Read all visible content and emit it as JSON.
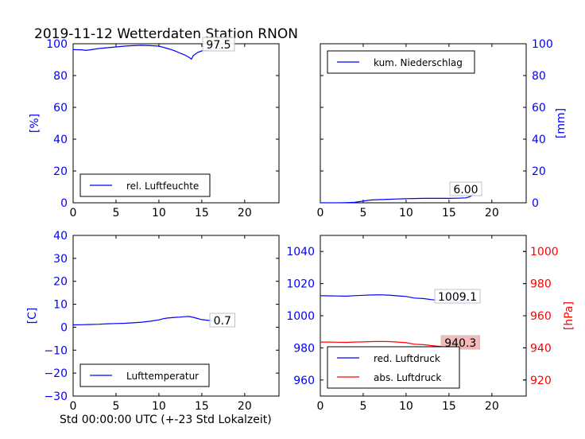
{
  "title": "2019-11-12 Wetterdaten Station RNON",
  "xlabel": "Std 00:00:00 UTC (+-23 Std Lokalzeit)",
  "colors": {
    "primary": "#0000ff",
    "secondary": "#ff0000",
    "axis": "#000000",
    "label_fill_red": "#f4b4b4"
  },
  "chart_data": [
    {
      "type": "line",
      "panel": "top-left",
      "ylabel": "[%]",
      "xlim": [
        0,
        24
      ],
      "ylim": [
        0,
        100
      ],
      "xticks": [
        "0",
        "5",
        "10",
        "15",
        "20"
      ],
      "yticks": [
        "0",
        "20",
        "40",
        "60",
        "80",
        "100"
      ],
      "legend": {
        "placement": "lower-left",
        "entries": [
          "rel. Luftfeuchte"
        ]
      },
      "last_value_label": "97.5",
      "series": [
        {
          "name": "rel. Luftfeuchte",
          "color": "#0000ff",
          "x": [
            0,
            1,
            1.5,
            2,
            3,
            4,
            5,
            6,
            7,
            8,
            9,
            10,
            10.5,
            11,
            11.5,
            12,
            12.5,
            13,
            13.5,
            13.8,
            14,
            14.5,
            15,
            16,
            17,
            18
          ],
          "y": [
            96.3,
            96.2,
            95.8,
            96.2,
            97,
            97.5,
            98,
            98.5,
            98.8,
            99,
            98.8,
            98.5,
            97.8,
            97,
            96.2,
            95.2,
            94,
            93,
            91.5,
            90.3,
            92.5,
            94.5,
            95.5,
            96.5,
            97,
            97.5
          ]
        }
      ]
    },
    {
      "type": "line",
      "panel": "top-right",
      "ylabel": "[mm]",
      "xlim": [
        0,
        24
      ],
      "ylim": [
        0,
        100
      ],
      "xticks": [
        "0",
        "5",
        "10",
        "15",
        "20"
      ],
      "yticks": [
        "0",
        "20",
        "40",
        "60",
        "80",
        "100"
      ],
      "legend": {
        "placement": "upper-left",
        "entries": [
          "kum. Niederschlag"
        ]
      },
      "last_value_label": "6.00",
      "series": [
        {
          "name": "kum. Niederschlag",
          "color": "#0000ff",
          "x": [
            0,
            2,
            3,
            4,
            4.5,
            5,
            5.5,
            6,
            7,
            8,
            9,
            10,
            11,
            12,
            13,
            14,
            15,
            16,
            17,
            17.5,
            18
          ],
          "y": [
            0,
            0,
            0.1,
            0.3,
            0.7,
            1.1,
            1.5,
            1.8,
            2.0,
            2.2,
            2.4,
            2.6,
            2.7,
            2.8,
            2.8,
            2.8,
            2.8,
            2.9,
            3.1,
            4.0,
            6.0
          ]
        }
      ]
    },
    {
      "type": "line",
      "panel": "bottom-left",
      "ylabel": "[C]",
      "xlim": [
        0,
        24
      ],
      "ylim": [
        -30,
        40
      ],
      "xticks": [
        "0",
        "5",
        "10",
        "15",
        "20"
      ],
      "yticks": [
        "−30",
        "−20",
        "−10",
        "0",
        "10",
        "20",
        "30",
        "40"
      ],
      "legend": {
        "placement": "lower-left",
        "entries": [
          "Lufttemperatur"
        ]
      },
      "last_value_label": "0.7",
      "series": [
        {
          "name": "Lufttemperatur",
          "color": "#0000ff",
          "x": [
            0,
            1,
            2,
            3,
            4,
            5,
            6,
            7,
            8,
            9,
            10,
            10.5,
            11,
            12,
            12.5,
            13,
            13.5,
            14,
            14.5,
            15,
            16,
            17,
            17.5,
            18
          ],
          "y": [
            1.0,
            1.1,
            1.2,
            1.3,
            1.5,
            1.6,
            1.7,
            1.9,
            2.2,
            2.6,
            3.2,
            3.7,
            4.0,
            4.3,
            4.4,
            4.6,
            4.7,
            4.3,
            3.8,
            3.3,
            2.9,
            2.6,
            2.2,
            0.7
          ]
        }
      ]
    },
    {
      "type": "line",
      "panel": "bottom-right",
      "ylabel": "[hPa]",
      "xlim": [
        0,
        24
      ],
      "ylim": [
        950,
        1050
      ],
      "ylim_secondary": [
        910,
        1010
      ],
      "xticks": [
        "0",
        "5",
        "10",
        "15",
        "20"
      ],
      "yticks": [
        "960",
        "980",
        "1000",
        "1020",
        "1040"
      ],
      "yticks_secondary": [
        "920",
        "940",
        "960",
        "980",
        "1000"
      ],
      "legend": {
        "placement": "lower-left",
        "entries": [
          "red. Luftdruck",
          "abs. Luftdruck"
        ]
      },
      "last_value_labels": [
        "1009.1",
        "940.3"
      ],
      "series": [
        {
          "name": "red. Luftdruck",
          "color": "#0000ff",
          "axis": "left",
          "x": [
            0,
            1,
            2,
            3,
            4,
            5,
            6,
            7,
            8,
            9,
            10,
            11,
            12,
            13,
            14,
            15,
            16,
            17,
            18
          ],
          "y": [
            1012.5,
            1012.4,
            1012.3,
            1012.2,
            1012.5,
            1012.7,
            1012.9,
            1013.0,
            1012.8,
            1012.4,
            1012.0,
            1011.0,
            1010.7,
            1010.0,
            1009.5,
            1009.3,
            1009.1,
            1009.2,
            1009.1
          ]
        },
        {
          "name": "abs. Luftdruck",
          "color": "#ff0000",
          "axis": "right",
          "x": [
            0,
            1,
            2,
            3,
            4,
            5,
            6,
            7,
            8,
            9,
            10,
            11,
            12,
            13,
            14,
            15,
            16,
            17,
            18
          ],
          "y": [
            943.6,
            943.6,
            943.5,
            943.4,
            943.6,
            943.7,
            943.9,
            944.0,
            943.9,
            943.6,
            943.2,
            942.3,
            942.0,
            941.4,
            940.9,
            940.6,
            940.4,
            940.3,
            940.3
          ]
        }
      ]
    }
  ]
}
